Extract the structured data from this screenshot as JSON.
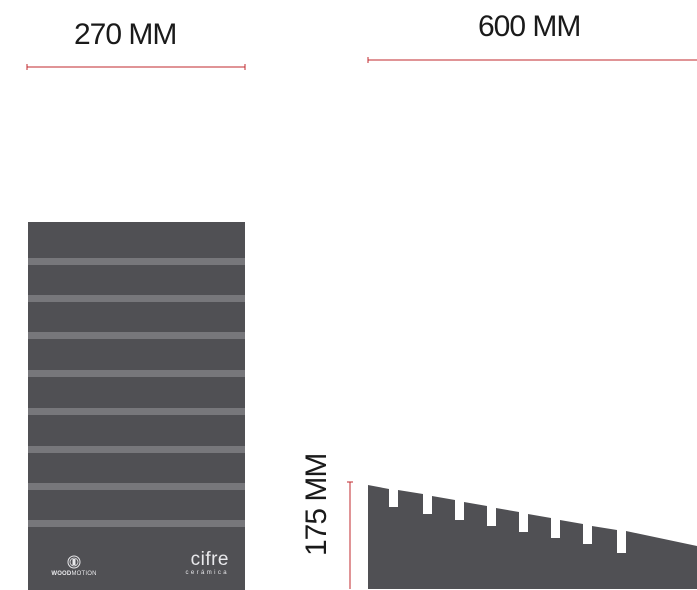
{
  "dimensions": {
    "width_label": "270 MM",
    "length_label": "600 MM",
    "height_label": "175 MM"
  },
  "front_panel": {
    "stripe_count": 8,
    "brand_left": {
      "bold": "WOOD",
      "regular": "MOTION"
    },
    "brand_right": {
      "name": "cifre",
      "sub": "cerámica"
    }
  },
  "colors": {
    "panel": "#505054",
    "stripe": "#77777b",
    "dimension_line": "#c0282d",
    "text": "#1a1a1a"
  }
}
